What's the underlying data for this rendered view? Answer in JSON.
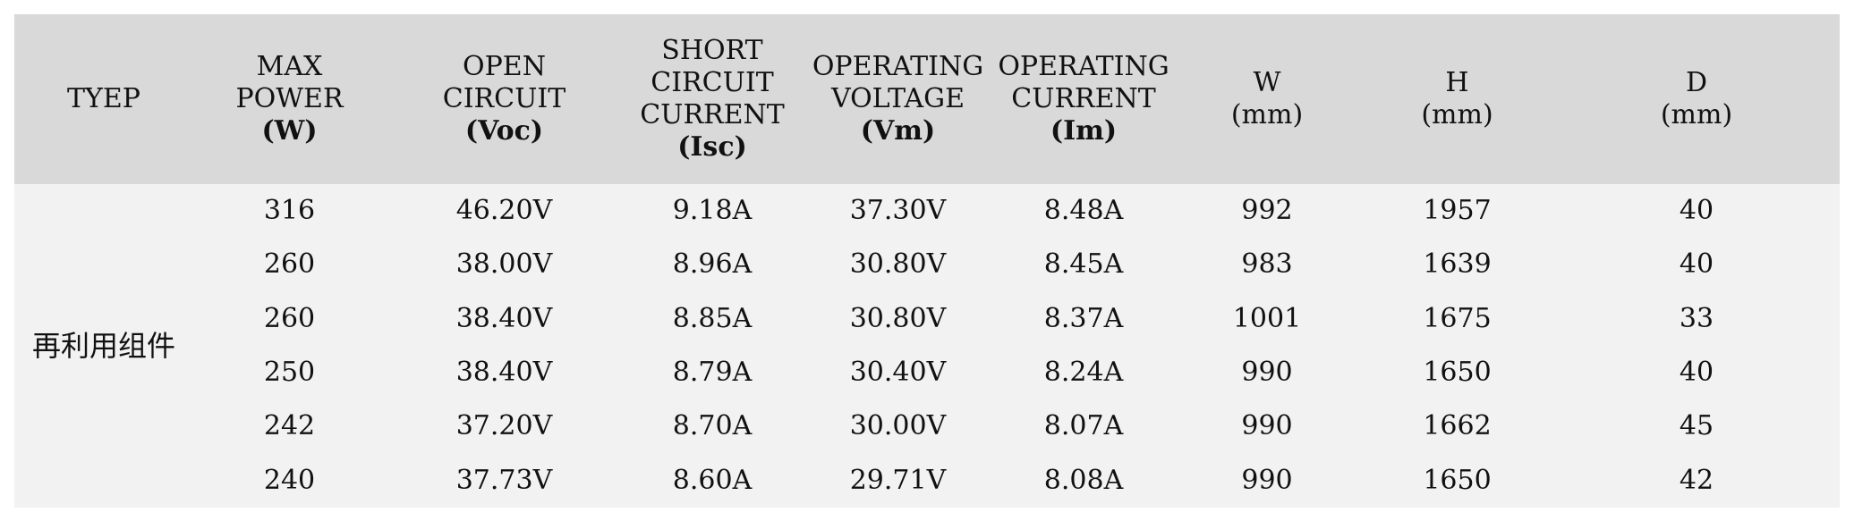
{
  "table": {
    "headers": [
      {
        "lines": [
          "TYEP"
        ],
        "unit": ""
      },
      {
        "lines": [
          "MAX",
          "POWER"
        ],
        "unit": "(W)"
      },
      {
        "lines": [
          "OPEN",
          "CIRCUIT"
        ],
        "unit": "(Voc)"
      },
      {
        "lines": [
          "SHORT",
          "CIRCUIT",
          "CURRENT"
        ],
        "unit": "(Isc)"
      },
      {
        "lines": [
          "OPERATING",
          "VOLTAGE"
        ],
        "unit": "(Vm)"
      },
      {
        "lines": [
          "OPERATING",
          "CURRENT"
        ],
        "unit": "(Im)"
      },
      {
        "lines": [
          "W"
        ],
        "unit": "(mm)"
      },
      {
        "lines": [
          "H"
        ],
        "unit": "(mm)"
      },
      {
        "lines": [
          "D"
        ],
        "unit": "(mm)"
      }
    ],
    "type_label": "再利用组件",
    "rows": [
      [
        "316",
        "46.20V",
        "9.18A",
        "37.30V",
        "8.48A",
        "992",
        "1957",
        "40"
      ],
      [
        "260",
        "38.00V",
        "8.96A",
        "30.80V",
        "8.45A",
        "983",
        "1639",
        "40"
      ],
      [
        "260",
        "38.40V",
        "8.85A",
        "30.80V",
        "8.37A",
        "1001",
        "1675",
        "33"
      ],
      [
        "250",
        "38.40V",
        "8.79A",
        "30.40V",
        "8.24A",
        "990",
        "1650",
        "40"
      ],
      [
        "242",
        "37.20V",
        "8.70A",
        "30.00V",
        "8.07A",
        "990",
        "1662",
        "45"
      ],
      [
        "240",
        "37.73V",
        "8.60A",
        "29.71V",
        "8.08A",
        "990",
        "1650",
        "42"
      ]
    ],
    "colors": {
      "header_bg": "#d9d9d9",
      "body_bg": "#f2f2f2",
      "text": "#111111"
    }
  }
}
